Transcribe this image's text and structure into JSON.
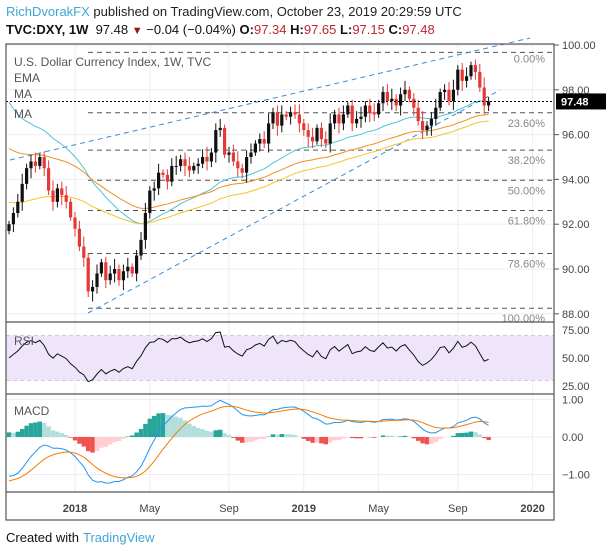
{
  "header": {
    "author": "RichDvorakFX",
    "published": " published on TradingView.com, October 23, 2019 20:29:59 UTC",
    "symbol": "TVC:DXY, 1W",
    "last": "97.48",
    "arrow": "▼",
    "change": "−0.04 (−0.04%)",
    "o_label": "O:",
    "o": "97.34",
    "h_label": "H:",
    "h": "97.65",
    "l_label": "L:",
    "l": "97.15",
    "c_label": "C:",
    "c": "97.48"
  },
  "footer": {
    "created": "Created with",
    "brand": "TradingView"
  },
  "colors": {
    "up": "#111111",
    "down": "#e53935",
    "ema": "#4fc3d9",
    "ma1": "#f0901e",
    "ma2": "#f4c430",
    "channel": "#3b8ad9",
    "rsi_bg": "#efe5fb",
    "macd": "#2196f3",
    "signal": "#f57c00",
    "hist_up": "#26a69a",
    "hist_up_light": "#b2dfdb",
    "hist_dn": "#ef5350",
    "hist_dn_light": "#ffcdd2"
  },
  "chart_data": {
    "type": "candlestick",
    "title": "U.S. Dollar Currency Index, 1W, TVC",
    "legend": [
      "EMA",
      "MA",
      "MA"
    ],
    "price_ticks": [
      "100.00",
      "98.00",
      "96.00",
      "94.00",
      "92.00",
      "90.00",
      "88.00"
    ],
    "price_tick_values": [
      100,
      98,
      96,
      94,
      92,
      90,
      88
    ],
    "ylim": [
      87.8,
      100.2
    ],
    "last_price_label": "97.48",
    "last_price": 97.48,
    "fib": {
      "high": 99.67,
      "low": 88.25,
      "levels": [
        {
          "pct": 0,
          "label": "0.00%"
        },
        {
          "pct": 0.236,
          "label": "23.60%"
        },
        {
          "pct": 0.382,
          "label": "38.20%"
        },
        {
          "pct": 0.5,
          "label": "50.00%"
        },
        {
          "pct": 0.618,
          "label": "61.80%"
        },
        {
          "pct": 0.786,
          "label": "78.60%"
        },
        {
          "pct": 1,
          "label": "100.00%"
        }
      ]
    },
    "x_labels": [
      {
        "label": "2018",
        "week": 0
      },
      {
        "label": "May",
        "week": 17
      },
      {
        "label": "Sep",
        "week": 35
      },
      {
        "label": "2019",
        "week": 52
      },
      {
        "label": "May",
        "week": 69
      },
      {
        "label": "Sep",
        "week": 87
      },
      {
        "label": "2020",
        "week": 104
      }
    ],
    "first_week": -15,
    "closes": [
      92.0,
      92.5,
      93.0,
      93.8,
      94.5,
      94.8,
      94.6,
      95.0,
      94.5,
      93.5,
      93.0,
      93.6,
      93.3,
      93.0,
      92.3,
      91.8,
      91.0,
      90.5,
      89.0,
      89.2,
      89.8,
      90.3,
      89.5,
      89.8,
      90.0,
      89.5,
      89.9,
      90.1,
      89.8,
      90.6,
      91.3,
      92.5,
      93.5,
      93.6,
      94.3,
      94.2,
      93.9,
      94.6,
      94.6,
      94.9,
      94.6,
      94.4,
      94.6,
      94.7,
      95.0,
      94.8,
      95.2,
      96.2,
      96.3,
      95.1,
      95.2,
      94.8,
      94.5,
      94.3,
      95.0,
      95.2,
      95.6,
      95.8,
      95.6,
      96.5,
      97.0,
      96.4,
      96.9,
      96.8,
      97.0,
      96.9,
      96.5,
      96.2,
      95.9,
      95.7,
      96.3,
      95.8,
      95.6,
      96.5,
      96.9,
      96.5,
      96.9,
      97.3,
      96.5,
      96.7,
      96.8,
      97.3,
      97.0,
      96.9,
      97.4,
      97.9,
      97.5,
      97.6,
      97.3,
      97.8,
      98.0,
      97.6,
      97.2,
      96.6,
      96.2,
      96.4,
      96.7,
      97.2,
      97.9,
      98.0,
      97.5,
      98.0,
      98.9,
      98.4,
      98.6,
      99.1,
      98.8,
      98.1,
      97.3,
      97.48
    ],
    "rsi": {
      "label": "RSI",
      "ticks": [
        "75.00",
        "50.00",
        "25.00"
      ],
      "tick_values": [
        75,
        50,
        25
      ],
      "band": [
        30,
        70
      ]
    },
    "macd": {
      "label": "MACD",
      "ticks": [
        "1.00",
        "0.00",
        "−1.00"
      ],
      "tick_values": [
        1,
        0,
        -1
      ]
    }
  }
}
